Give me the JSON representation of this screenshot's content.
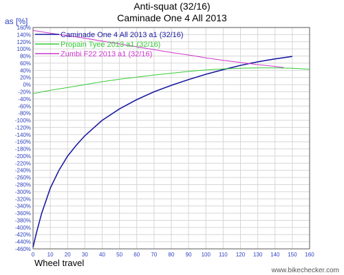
{
  "chart_data": {
    "type": "line",
    "title": "Anti-squat (32/16)",
    "subtitle": "Caminade One 4 All 2013",
    "ylabel": "as [%]",
    "xlabel": "Wheel travel",
    "credit": "www.bikechecker.com",
    "xlim": [
      0,
      160
    ],
    "ylim": [
      -460,
      160
    ],
    "xticks": [
      0,
      10,
      20,
      30,
      40,
      50,
      60,
      70,
      80,
      90,
      100,
      110,
      120,
      130,
      140,
      150,
      160
    ],
    "yticks": [
      160,
      140,
      120,
      100,
      80,
      60,
      40,
      20,
      0,
      -20,
      -40,
      -60,
      -80,
      -100,
      -120,
      -140,
      -160,
      -180,
      -200,
      -220,
      -240,
      -260,
      -280,
      -300,
      -320,
      -340,
      -360,
      -380,
      -400,
      -420,
      -440,
      -460
    ],
    "grid": true,
    "legend_position": "top-left",
    "series": [
      {
        "name": "Caminade One 4 All 2013 a1 (32/16)",
        "color": "#1a1aa0",
        "x": [
          0,
          2,
          5,
          10,
          15,
          20,
          25,
          30,
          40,
          50,
          60,
          70,
          80,
          90,
          100,
          110,
          120,
          130,
          140,
          150
        ],
        "y": [
          -455,
          -415,
          -360,
          -290,
          -240,
          -200,
          -170,
          -143,
          -100,
          -68,
          -42,
          -20,
          -2,
          14,
          29,
          42,
          54,
          64,
          72,
          79
        ]
      },
      {
        "name": "Propain Tyee 2013 a1 (32/16)",
        "color": "#33cc33",
        "x": [
          0,
          10,
          20,
          30,
          40,
          50,
          60,
          70,
          80,
          90,
          100,
          110,
          120,
          130,
          140,
          150,
          160
        ],
        "y": [
          -25,
          -16,
          -8,
          0,
          8,
          15,
          21,
          27,
          32,
          37,
          41,
          44,
          46,
          47,
          47,
          46,
          43
        ]
      },
      {
        "name": "Zumbi F22 2013 a1 (32/16)",
        "color": "#cc33cc",
        "x": [
          0,
          10,
          20,
          30,
          40,
          50,
          60,
          70,
          80,
          90,
          100,
          110,
          120,
          130,
          140,
          145
        ],
        "y": [
          152,
          144,
          137,
          130,
          122,
          114,
          106,
          98,
          90,
          83,
          75,
          68,
          62,
          56,
          51,
          48
        ]
      }
    ]
  }
}
